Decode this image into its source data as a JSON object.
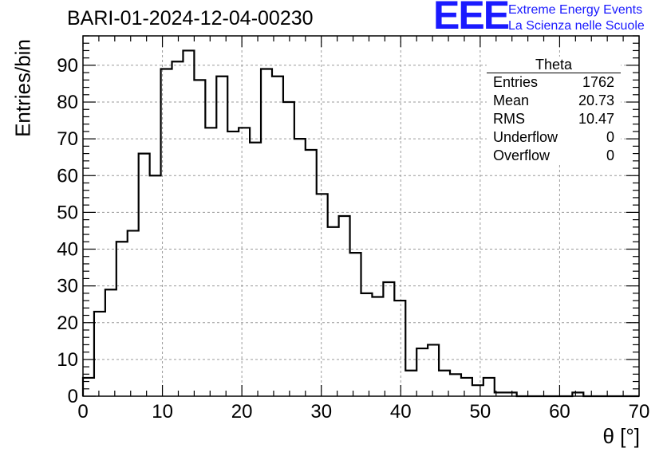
{
  "header": {
    "run_title": "BARI-01-2024-12-04-00230",
    "logo_text": "EEE",
    "logo_line1": "Extreme Energy Events",
    "logo_line2": "La Scienza nelle Scuole",
    "logo_color": "#1a1aff"
  },
  "stats_box": {
    "title": "Theta",
    "rows": [
      {
        "label": "Entries",
        "value": "1762"
      },
      {
        "label": "Mean",
        "value": "20.73"
      },
      {
        "label": "RMS",
        "value": "10.47"
      },
      {
        "label": "Underflow",
        "value": "0"
      },
      {
        "label": "Overflow",
        "value": "0"
      }
    ]
  },
  "chart_data": {
    "type": "histogram",
    "xlabel": "θ [°]",
    "ylabel": "Entries/bin",
    "xlim": [
      0,
      70
    ],
    "ylim": [
      0,
      98
    ],
    "bin_width": 1.4,
    "x_ticks": [
      0,
      10,
      20,
      30,
      40,
      50,
      60,
      70
    ],
    "y_ticks": [
      0,
      10,
      20,
      30,
      40,
      50,
      60,
      70,
      80,
      90
    ],
    "grid": true,
    "line_color": "#000000",
    "values": [
      5,
      23,
      29,
      42,
      45,
      66,
      60,
      89,
      91,
      94,
      86,
      73,
      87,
      72,
      73,
      69,
      89,
      87,
      80,
      70,
      67,
      55,
      46,
      49,
      39,
      28,
      27,
      31,
      26,
      7,
      13,
      14,
      7,
      6,
      5,
      3,
      5,
      1,
      1,
      0,
      0,
      0,
      0,
      0,
      1,
      0,
      0,
      0,
      0,
      0
    ]
  }
}
